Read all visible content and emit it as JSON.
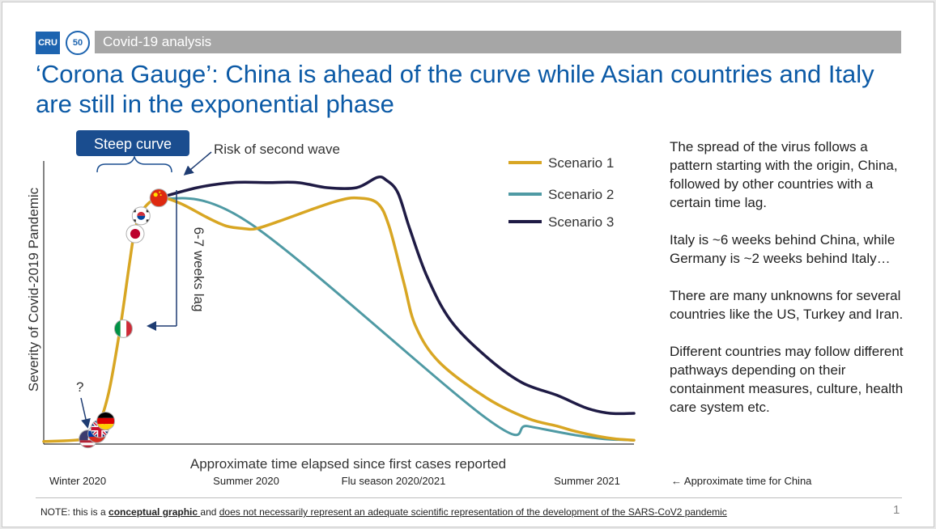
{
  "header": {
    "logo_text": "CRU",
    "anniversary_badge": "50",
    "section": "Covid-19 analysis",
    "title": "‘Corona Gauge’: China is ahead of the curve while Asian countries and Italy are still in the exponential phase"
  },
  "chart_data": {
    "type": "line",
    "title": "",
    "xlabel": "Approximate time elapsed since first cases reported",
    "ylabel": "Severity of Covid-2019 Pandemic",
    "xlim": [
      0,
      100
    ],
    "ylim": [
      0,
      100
    ],
    "x_ticks": [
      "Winter 2020",
      "Summer 2020",
      "Flu season 2020/2021",
      "Summer 2021"
    ],
    "x_note": "← Approximate time for China",
    "grid": false,
    "legend_position": "top-right",
    "colors": {
      "scenario1": "#d8a623",
      "scenario2": "#4f9aa4",
      "scenario3": "#1f1b45",
      "annotation": "#1e3c72"
    },
    "series": [
      {
        "name": "Scenario 1",
        "x": [
          0,
          7,
          9,
          11,
          13,
          14.5,
          15.5,
          17,
          19.5,
          23,
          28,
          31,
          34,
          36,
          40,
          46,
          50,
          53,
          56.5,
          58.5,
          61,
          63,
          67,
          75,
          82,
          87,
          90,
          94,
          97,
          100
        ],
        "y": [
          1,
          2,
          6,
          20,
          46,
          70,
          84,
          92,
          96,
          94,
          88,
          85,
          84,
          84,
          87,
          92,
          95,
          96,
          94,
          85,
          63,
          46,
          32,
          18,
          10,
          7,
          5,
          3,
          2,
          1.5
        ]
      },
      {
        "name": "Scenario 2",
        "x": [
          19.5,
          35,
          75,
          82,
          90,
          95,
          100
        ],
        "y": [
          96,
          86,
          10,
          7,
          3.5,
          2,
          1.5
        ]
      },
      {
        "name": "Scenario 3",
        "x": [
          19.5,
          26,
          32,
          38,
          43,
          48,
          53,
          56.5,
          58,
          60,
          62,
          65,
          69,
          75,
          81,
          87,
          92,
          96,
          100
        ],
        "y": [
          96,
          100,
          102,
          102,
          102,
          100,
          100,
          104,
          103,
          98,
          84,
          65,
          48,
          34,
          24,
          19,
          14,
          12,
          12
        ]
      }
    ],
    "flag_markers": [
      {
        "country": "China",
        "x": 19.5,
        "y": 96,
        "colors": [
          "#de2910",
          "#ffde00"
        ]
      },
      {
        "country": "South Korea",
        "x": 16.5,
        "y": 89,
        "colors": [
          "#ffffff",
          "#cd2e3a",
          "#0047a0"
        ]
      },
      {
        "country": "Japan",
        "x": 15.5,
        "y": 82,
        "colors": [
          "#ffffff",
          "#bc002d"
        ]
      },
      {
        "country": "Italy",
        "x": 13.5,
        "y": 45,
        "colors": [
          "#009246",
          "#ffffff",
          "#ce2b37"
        ]
      },
      {
        "country": "Germany",
        "x": 10.5,
        "y": 9,
        "colors": [
          "#000000",
          "#dd0000",
          "#ffce00"
        ]
      },
      {
        "country": "United Kingdom",
        "x": 9.5,
        "y": 6,
        "colors": [
          "#012169",
          "#ffffff",
          "#c8102e"
        ]
      },
      {
        "country": "Russia",
        "x": 9,
        "y": 4,
        "colors": [
          "#ffffff",
          "#0039a6",
          "#d52b1e"
        ]
      },
      {
        "country": "United States",
        "x": 7.5,
        "y": 2,
        "colors": [
          "#b22234",
          "#ffffff",
          "#3c3b6e"
        ]
      }
    ],
    "annotations": [
      {
        "id": "steep",
        "text": "Steep curve"
      },
      {
        "id": "second_wave",
        "text": "Risk of second wave"
      },
      {
        "id": "lag",
        "text": "6-7 weeks lag"
      },
      {
        "id": "question",
        "text": "?"
      }
    ]
  },
  "side_text": [
    "The spread of the virus follows a pattern starting with the origin, China, followed by other countries with a certain time lag.",
    "Italy is ~6 weeks behind China, while Germany is ~2 weeks behind Italy…",
    "There are many unknowns for several countries like the US, Turkey and Iran.",
    "Different countries may follow different pathways depending on their containment measures, culture, health care system etc."
  ],
  "footer": {
    "note_prefix": "NOTE: this is a ",
    "note_bold": "conceptual graphic ",
    "note_mid": "and ",
    "note_underline": "does not necessarily represent an adequate scientific representation of the development of the SARS-CoV2 pandemic",
    "page": "1"
  }
}
